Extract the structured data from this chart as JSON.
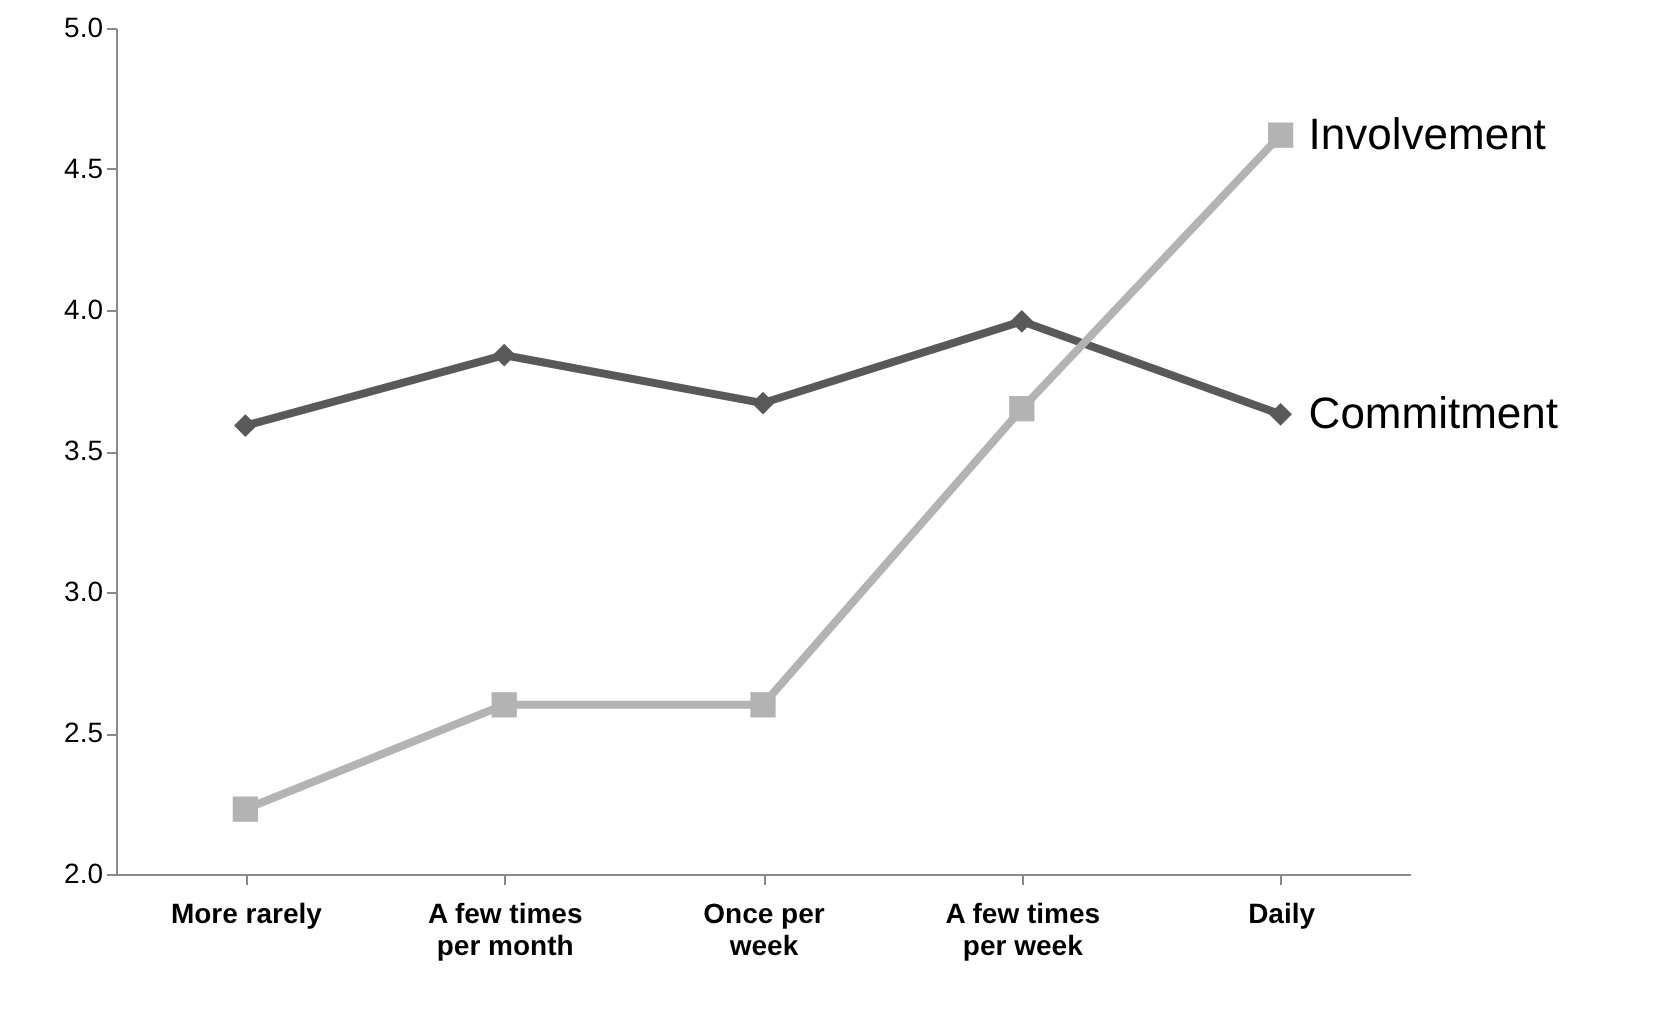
{
  "chart_data": {
    "type": "line",
    "categories": [
      "More rarely",
      "A few times per month",
      "Once per week",
      "A few times per week",
      "Daily"
    ],
    "series": [
      {
        "name": "Commitment",
        "color": "#595959",
        "marker": "diamond",
        "values": [
          3.59,
          3.84,
          3.67,
          3.96,
          3.63
        ]
      },
      {
        "name": "Involvement",
        "color": "#b3b3b3",
        "marker": "square",
        "values": [
          2.23,
          2.6,
          2.6,
          3.65,
          4.62
        ]
      }
    ],
    "ylim": [
      2.0,
      5.0
    ],
    "yticks": [
      {
        "value": 2,
        "label": "2.0"
      },
      {
        "value": 2.5,
        "label": "2.5"
      },
      {
        "value": 3,
        "label": "3.0"
      },
      {
        "value": 3.5,
        "label": "3.5"
      },
      {
        "value": 4,
        "label": "4.0"
      },
      {
        "value": 4.5,
        "label": "4.5"
      },
      {
        "value": 5,
        "label": "5.0"
      }
    ],
    "grid": false
  }
}
